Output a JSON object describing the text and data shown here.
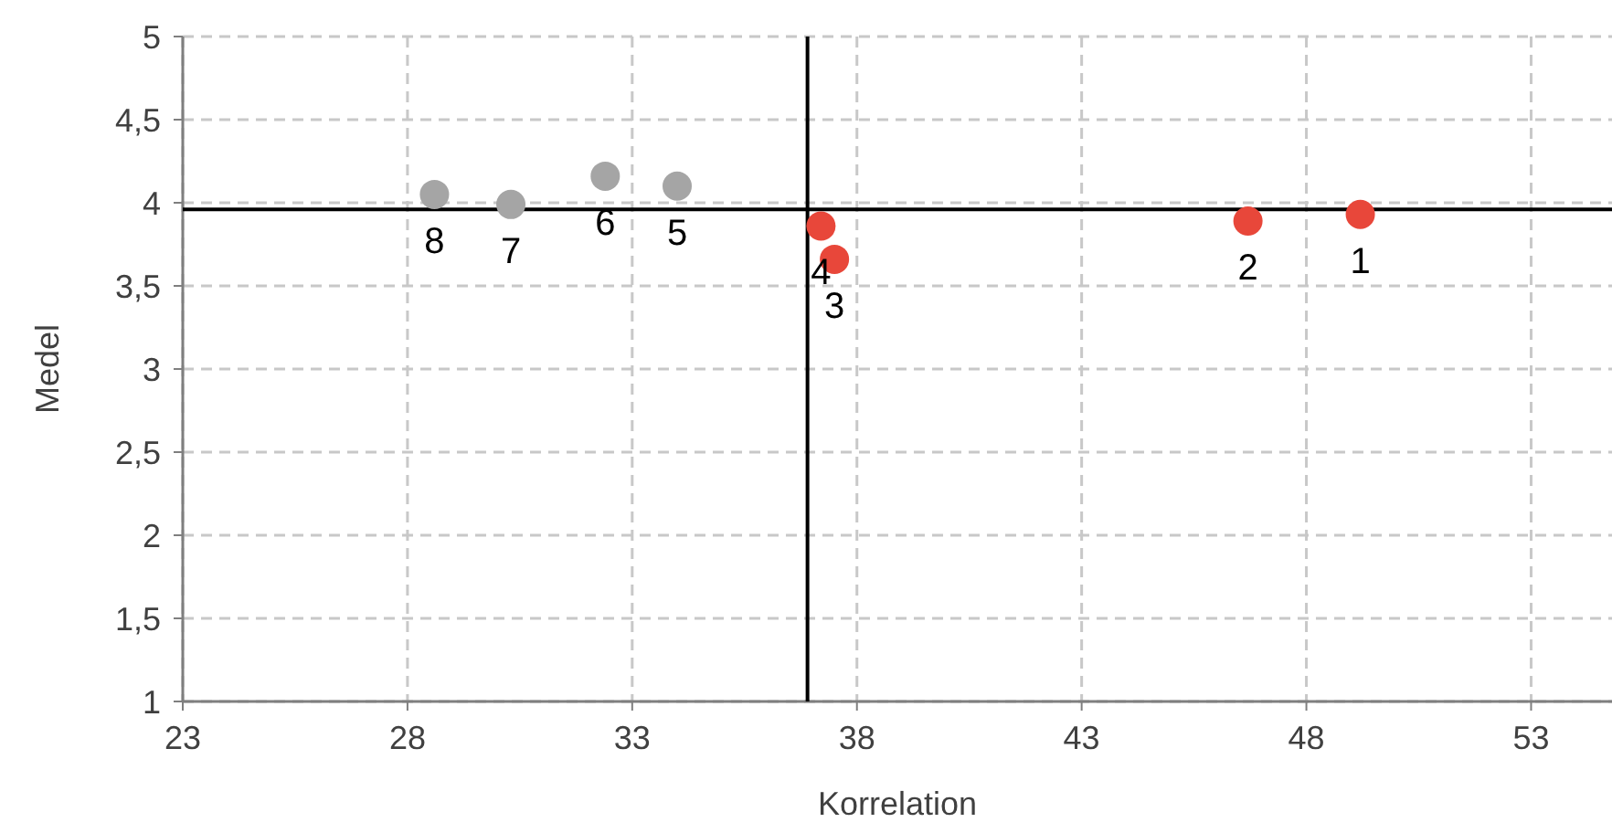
{
  "chart_data": {
    "type": "scatter",
    "xlabel": "Korrelation",
    "ylabel": "Medel",
    "xlim": [
      23,
      54.8
    ],
    "xticks": [
      23,
      28,
      33,
      38,
      43,
      48,
      53
    ],
    "ylim": [
      1,
      5
    ],
    "yticks": [
      1,
      {
        "value": 1.5,
        "label": "1,5"
      },
      2,
      {
        "value": 2.5,
        "label": "2,5"
      },
      3,
      {
        "value": 3.5,
        "label": "3,5"
      },
      4,
      {
        "value": 4.5,
        "label": "4,5"
      },
      5
    ],
    "grid": true,
    "marker": "circle",
    "series": [
      {
        "color": "#a5a5a5",
        "x": [
          28.6,
          30.3,
          32.4,
          34.0
        ],
        "values": [
          4.05,
          3.99,
          4.16,
          4.1
        ]
      },
      {
        "color": "#e8473a",
        "x": [
          37.2,
          37.5,
          46.7,
          49.2
        ],
        "values": [
          3.86,
          3.66,
          3.89,
          3.93
        ]
      }
    ],
    "ref_lines": [
      {
        "axis": "x",
        "value": 36.9,
        "color": "#000000"
      },
      {
        "axis": "y",
        "value": 3.96,
        "color": "#000000"
      }
    ],
    "annotations": [
      {
        "text": "8",
        "x": 28.6,
        "y": 4.05
      },
      {
        "text": "7",
        "x": 30.3,
        "y": 3.99
      },
      {
        "text": "6",
        "x": 32.4,
        "y": 4.16
      },
      {
        "text": "5",
        "x": 34.0,
        "y": 4.1
      },
      {
        "text": "4",
        "x": 37.2,
        "y": 3.86
      },
      {
        "text": "3",
        "x": 37.5,
        "y": 3.66
      },
      {
        "text": "2",
        "x": 46.7,
        "y": 3.89
      },
      {
        "text": "1",
        "x": 49.2,
        "y": 3.93
      }
    ]
  }
}
